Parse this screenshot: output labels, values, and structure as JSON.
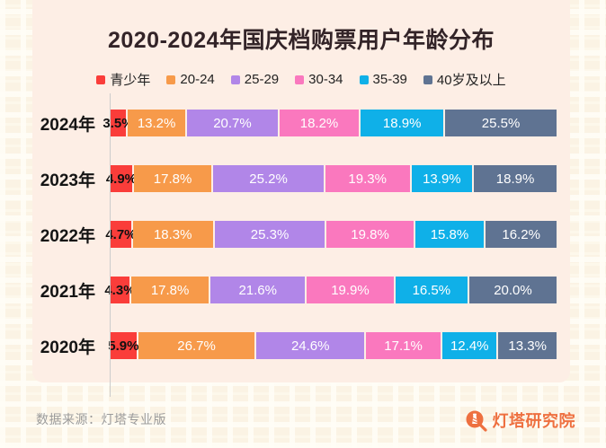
{
  "title": "2020-2024年国庆档购票用户年龄分布",
  "chart_data": {
    "type": "bar",
    "subtype": "horizontal-stacked",
    "orientation": "horizontal",
    "categories": [
      "2024年",
      "2023年",
      "2022年",
      "2021年",
      "2020年"
    ],
    "series": [
      {
        "name": "青少年",
        "color": "#fa3d3a",
        "values": [
          3.5,
          4.9,
          4.7,
          4.3,
          5.9
        ]
      },
      {
        "name": "20-24",
        "color": "#f79a4a",
        "values": [
          13.2,
          17.8,
          18.3,
          17.8,
          26.7
        ]
      },
      {
        "name": "25-29",
        "color": "#b186e8",
        "values": [
          20.7,
          25.2,
          25.3,
          21.6,
          24.6
        ]
      },
      {
        "name": "30-34",
        "color": "#fa78be",
        "values": [
          18.2,
          19.3,
          19.8,
          19.9,
          17.1
        ]
      },
      {
        "name": "35-39",
        "color": "#0fb0e8",
        "values": [
          18.9,
          13.9,
          15.8,
          16.5,
          12.4
        ]
      },
      {
        "name": "40岁及以上",
        "color": "#5f7392",
        "values": [
          25.5,
          18.9,
          16.2,
          20.0,
          13.3
        ]
      }
    ],
    "value_suffix": "%",
    "xlim": [
      0,
      100
    ],
    "grid": false,
    "legend_position": "top-center",
    "title": "2020-2024年国庆档购票用户年龄分布"
  },
  "footer": {
    "source": "数据来源：灯塔专业版",
    "brand": "灯塔研究院"
  },
  "colors": {
    "panel_background": "#fdeee5",
    "page_background": "#fbf3e4",
    "title_text": "#332428",
    "axis_line": "#cccccc",
    "source_text": "#9b9b9b",
    "brand_orange": "#ee7040"
  }
}
